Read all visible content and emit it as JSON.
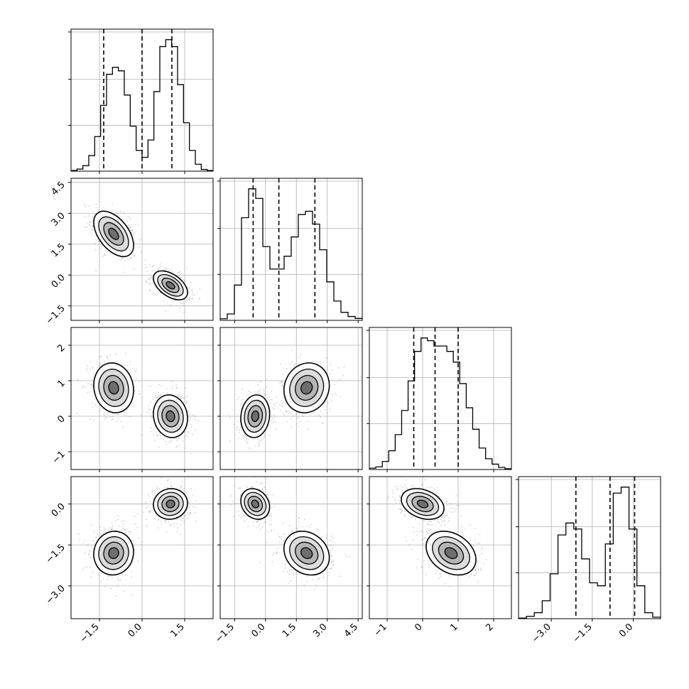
{
  "chart_data": {
    "type": "corner",
    "title": "",
    "grid": true,
    "ndim": 4,
    "colors": {
      "hist": "#000000",
      "contour": "#000000",
      "points": "#808080",
      "grid": "#b0b0b0"
    },
    "params": [
      {
        "index": 0,
        "range": [
          -2.5,
          2.5
        ],
        "ticks": [
          -1.5,
          0.0,
          1.5
        ],
        "tick_labels": [
          "−1.5",
          "0.0",
          "1.5"
        ],
        "quantiles": [
          -1.35,
          0.0,
          1.05
        ]
      },
      {
        "index": 1,
        "range": [
          -2.2,
          4.7
        ],
        "ticks": [
          -1.5,
          0.0,
          1.5,
          3.0,
          4.5
        ],
        "tick_labels": [
          "−1.5",
          "0.0",
          "1.5",
          "3.0",
          "4.5"
        ],
        "quantiles": [
          -0.6,
          0.65,
          2.4
        ]
      },
      {
        "index": 2,
        "range": [
          -1.5,
          2.5
        ],
        "ticks": [
          -1,
          0,
          1,
          2
        ],
        "tick_labels": [
          "−1",
          "0",
          "1",
          "2"
        ],
        "quantiles": [
          -0.25,
          0.35,
          1.0
        ]
      },
      {
        "index": 3,
        "range": [
          -4.2,
          1.0
        ],
        "ticks": [
          -3.0,
          -1.5,
          0.0
        ],
        "tick_labels": [
          "−3.0",
          "−1.5",
          "0.0"
        ],
        "quantiles": [
          -2.1,
          -0.85,
          0.05
        ]
      }
    ],
    "histograms": [
      {
        "param": 0,
        "bin_edges": [
          -2.5,
          2.5
        ],
        "counts": [
          2,
          6,
          16,
          45,
          100,
          190,
          280,
          300,
          290,
          220,
          130,
          60,
          40,
          90,
          230,
          360,
          380,
          360,
          250,
          140,
          60,
          20,
          5,
          2
        ]
      },
      {
        "param": 1,
        "bin_edges": [
          -2.2,
          4.7
        ],
        "counts": [
          5,
          20,
          110,
          320,
          410,
          380,
          230,
          160,
          160,
          200,
          260,
          330,
          340,
          300,
          220,
          120,
          60,
          25,
          12,
          6
        ]
      },
      {
        "param": 2,
        "bin_edges": [
          -1.5,
          2.5
        ],
        "counts": [
          5,
          10,
          30,
          70,
          130,
          220,
          330,
          440,
          490,
          480,
          460,
          460,
          440,
          400,
          320,
          230,
          150,
          80,
          40,
          20,
          8,
          3
        ]
      },
      {
        "param": 3,
        "bin_edges": [
          -4.2,
          1.0
        ],
        "counts": [
          2,
          8,
          20,
          60,
          150,
          280,
          320,
          300,
          200,
          120,
          110,
          250,
          420,
          440,
          300,
          110,
          20,
          5
        ]
      }
    ],
    "clusters": [
      {
        "name": "",
        "fraction": 0.5,
        "mean": [
          -1.0,
          2.0,
          0.8,
          -1.8
        ],
        "std": [
          0.35,
          0.55,
          0.35,
          0.4
        ]
      },
      {
        "name": "",
        "fraction": 0.5,
        "mean": [
          1.0,
          -0.5,
          0.0,
          0.0
        ],
        "std": [
          0.3,
          0.35,
          0.3,
          0.28
        ]
      }
    ],
    "correlations": {
      "0-1": -0.5,
      "0-2": -0.1,
      "0-3": 0.05,
      "1-2": 0.1,
      "1-3": -0.2,
      "2-3": -0.3
    },
    "contour_levels_sigma": [
      0.5,
      1.0,
      1.5,
      2.0
    ]
  }
}
